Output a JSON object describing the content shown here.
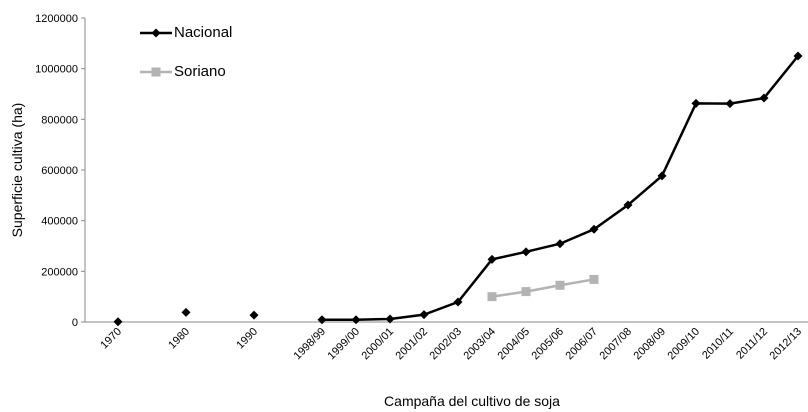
{
  "chart_data": {
    "type": "line",
    "x_label": "Campaña del cultivo de soja",
    "y_label": "Superficie cultiva (ha)",
    "categories": [
      "1970",
      null,
      "1980",
      null,
      "1990",
      null,
      "1998/99",
      "1999/00",
      "2000/01",
      "2001/02",
      "2002/03",
      "2003/04",
      "2004/05",
      "2005/06",
      "2006/07",
      "2007/08",
      "2008/09",
      "2009/10",
      "2010/11",
      "2011/12",
      "2012/13"
    ],
    "series": [
      {
        "name": "Nacional",
        "color": "#000000",
        "marker": "diamond",
        "values": [
          1000,
          null,
          38000,
          null,
          27000,
          null,
          9000,
          9000,
          12000,
          29000,
          79000,
          247000,
          277000,
          309000,
          366000,
          462000,
          577000,
          863000,
          862000,
          884000,
          1050000
        ]
      },
      {
        "name": "Soriano",
        "color": "#b3b3b3",
        "marker": "square",
        "values": [
          null,
          null,
          null,
          null,
          null,
          null,
          null,
          null,
          null,
          null,
          null,
          100000,
          120000,
          145000,
          168000,
          null,
          null,
          null,
          null,
          null,
          null
        ]
      }
    ],
    "ylim": [
      0,
      1200000
    ],
    "yticks": [
      0,
      200000,
      400000,
      600000,
      800000,
      1000000,
      1200000
    ],
    "grid": false,
    "legend": "upper left"
  }
}
